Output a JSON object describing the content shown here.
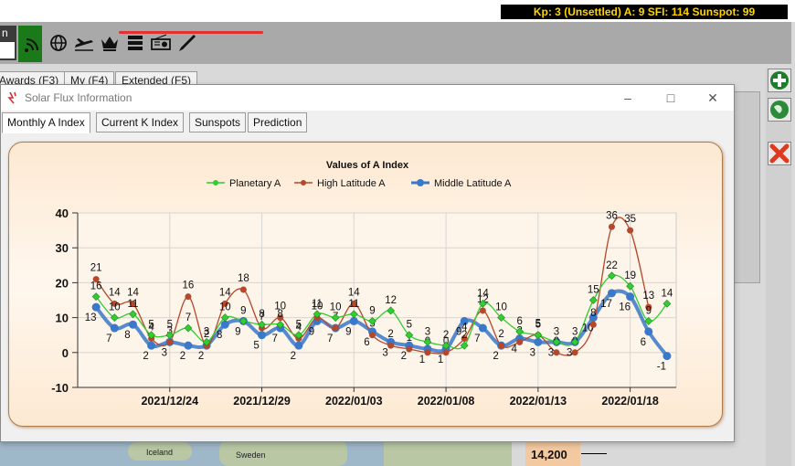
{
  "header": {
    "kp_status": "Kp: 3 (Unsettled)  A: 9  SFI: 114 Sunspot: 99",
    "mini_label": "n"
  },
  "main_tabs": [
    {
      "label": "Awards (F3)"
    },
    {
      "label": "My (F4)"
    },
    {
      "label": "Extended (F5)"
    }
  ],
  "window": {
    "title": "Solar Flux Information",
    "tabs": [
      {
        "label": "Monthly A Index",
        "active": true
      },
      {
        "label": "Current K Index",
        "active": false
      },
      {
        "label": "Sunspots",
        "active": false
      },
      {
        "label": "Prediction",
        "active": false
      }
    ]
  },
  "map": {
    "labels": [
      "Iceland",
      "Sweden"
    ]
  },
  "status": {
    "value": "14,200"
  },
  "icons": {
    "toolbar": [
      "wifi-icon",
      "globe-icon",
      "plane-icon",
      "crown-icon",
      "server-icon",
      "radio-icon",
      "pen-icon"
    ],
    "right": [
      "plus-icon",
      "globe-icon",
      "close-icon"
    ]
  },
  "colors": {
    "planetary": "#33cc33",
    "high_latitude": "#b5482b",
    "middle_latitude": "#3a78c9",
    "kp_text": "#ffd400"
  },
  "chart_data": {
    "type": "line",
    "title": "Values of A Index",
    "x_tick_labels": [
      "2021/12/24",
      "2021/12/29",
      "2022/01/03",
      "2022/01/08",
      "2022/01/13",
      "2022/01/18"
    ],
    "y_ticks": [
      40,
      30,
      20,
      10,
      0,
      -10
    ],
    "ylim": [
      -10,
      40
    ],
    "legend_position": "top",
    "grid": true,
    "series": [
      {
        "name": "Planetary A",
        "values": [
          16,
          10,
          11,
          5,
          5,
          7,
          3,
          10,
          9,
          8,
          8,
          5,
          11,
          10,
          11,
          9,
          12,
          5,
          3,
          2,
          2,
          14,
          10,
          6,
          5,
          3,
          3,
          15,
          22,
          19,
          9,
          14
        ]
      },
      {
        "name": "High Latitude A",
        "values": [
          21,
          14,
          14,
          4,
          3,
          16,
          2,
          14,
          18,
          7,
          10,
          4,
          10,
          7,
          14,
          5,
          2,
          1,
          0,
          0,
          4,
          12,
          2,
          3,
          5,
          0,
          0,
          8,
          36,
          35,
          13,
          null
        ]
      },
      {
        "name": "Middle Latitude A",
        "values": [
          13,
          7,
          8,
          2,
          3,
          2,
          2,
          8,
          9,
          5,
          7,
          2,
          9,
          7,
          9,
          6,
          3,
          2,
          1,
          1,
          9,
          7,
          2,
          4,
          3,
          3,
          3,
          10,
          17,
          16,
          6,
          -1
        ]
      }
    ]
  }
}
